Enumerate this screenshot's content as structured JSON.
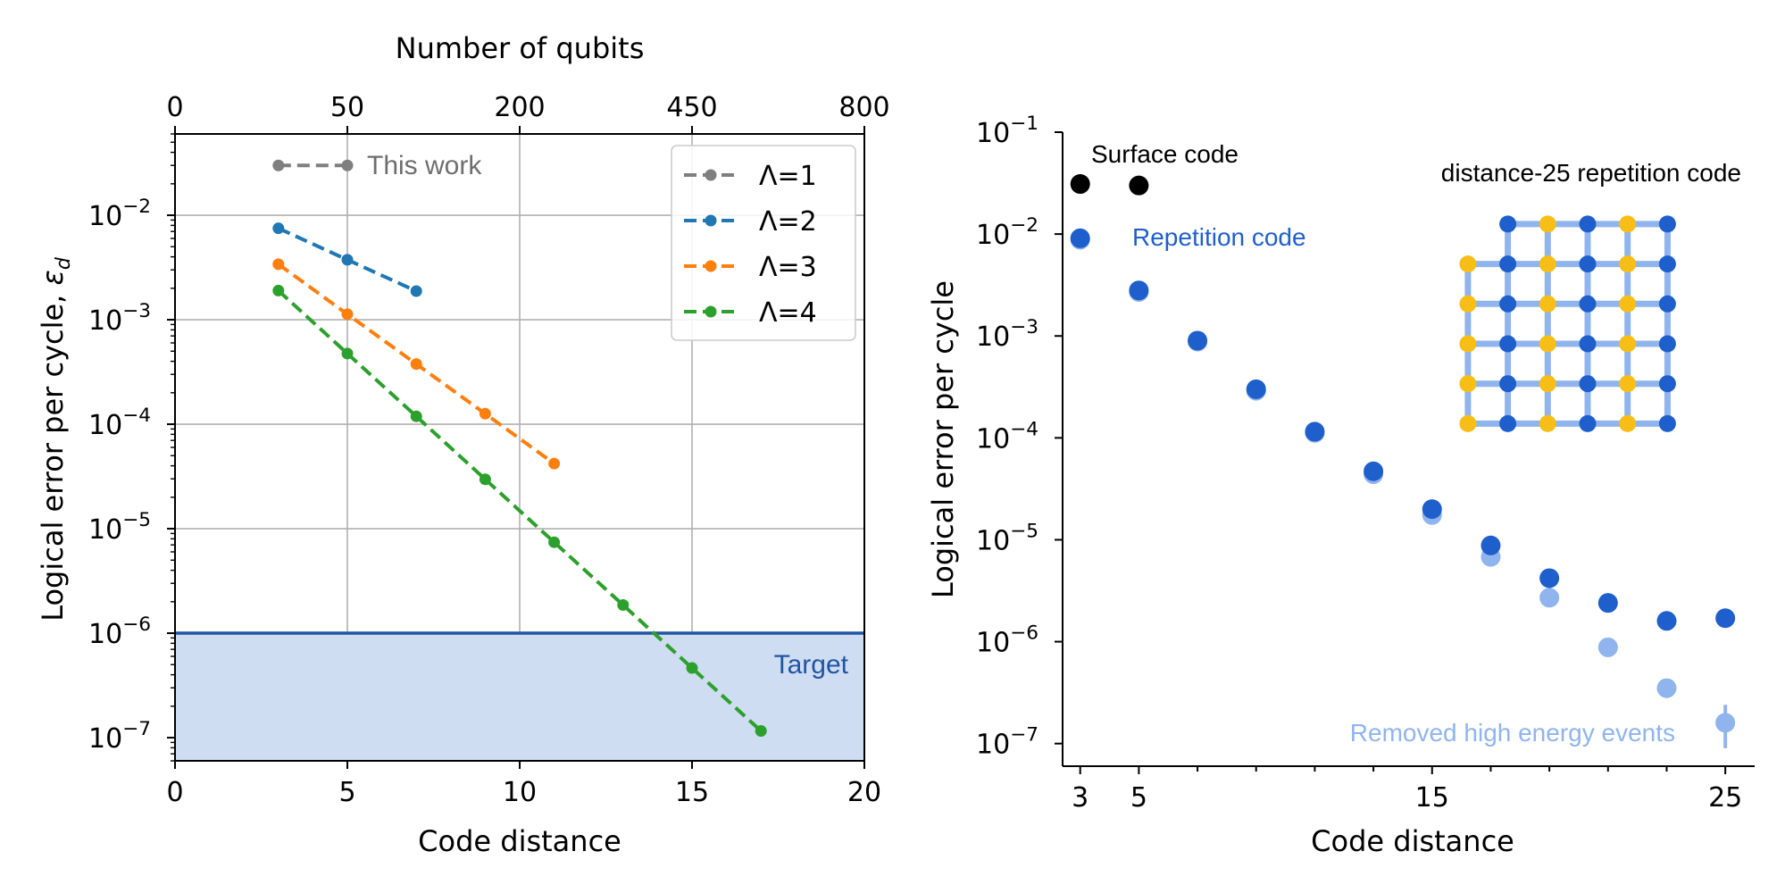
{
  "chart_data": [
    {
      "type": "line",
      "xlabel": "Code distance",
      "ylabel": "Logical error per cycle, ε_d",
      "secondary_xlabel": "Number of qubits",
      "xlim": [
        0,
        20
      ],
      "ylim": [
        6e-08,
        0.06
      ],
      "yscale": "log",
      "grid": true,
      "legend_position": "top-right",
      "x_ticks": [
        "0",
        "5",
        "10",
        "15",
        "20"
      ],
      "y_ticks": [
        {
          "value": 0.01,
          "base": "10",
          "exp": "−2"
        },
        {
          "value": 0.001,
          "base": "10",
          "exp": "−3"
        },
        {
          "value": 0.0001,
          "base": "10",
          "exp": "−4"
        },
        {
          "value": 1e-05,
          "base": "10",
          "exp": "−5"
        },
        {
          "value": 1e-06,
          "base": "10",
          "exp": "−6"
        },
        {
          "value": 1e-07,
          "base": "10",
          "exp": "−7"
        }
      ],
      "secondary_x_ticks": [
        {
          "x": 0,
          "label": "0"
        },
        {
          "x": 5,
          "label": "50"
        },
        {
          "x": 10,
          "label": "200"
        },
        {
          "x": 15,
          "label": "450"
        },
        {
          "x": 20,
          "label": "800"
        }
      ],
      "series": [
        {
          "name": "Λ=1",
          "color": "#7f7f7f",
          "x": [
            3,
            5
          ],
          "y": [
            0.03,
            0.03
          ]
        },
        {
          "name": "Λ=2",
          "color": "#1f77b4",
          "x": [
            3,
            5,
            7
          ],
          "y": [
            0.0075,
            0.00375,
            0.00188
          ]
        },
        {
          "name": "Λ=3",
          "color": "#ff7f0e",
          "x": [
            3,
            5,
            7,
            9,
            11
          ],
          "y": [
            0.0034,
            0.00113,
            0.000377,
            0.000126,
            4.2e-05
          ]
        },
        {
          "name": "Λ=4",
          "color": "#2ca02c",
          "x": [
            3,
            5,
            7,
            9,
            11,
            13,
            15,
            17
          ],
          "y": [
            0.0019,
            0.000475,
            0.000119,
            2.97e-05,
            7.42e-06,
            1.86e-06,
            4.64e-07,
            1.16e-07
          ]
        }
      ],
      "annotations": {
        "this_work": "This work",
        "target": "Target",
        "target_level": 1e-06
      }
    },
    {
      "type": "scatter",
      "xlabel": "Code distance",
      "ylabel": "Logical error per cycle",
      "xlim": [
        2.4,
        26
      ],
      "ylim": [
        6e-08,
        0.1
      ],
      "yscale": "log",
      "grid": false,
      "x_ticks": [
        "3",
        "5",
        "15",
        "25"
      ],
      "y_ticks": [
        {
          "value": 0.1,
          "base": "10",
          "exp": "−1"
        },
        {
          "value": 0.01,
          "base": "10",
          "exp": "−2"
        },
        {
          "value": 0.001,
          "base": "10",
          "exp": "−3"
        },
        {
          "value": 0.0001,
          "base": "10",
          "exp": "−4"
        },
        {
          "value": 1e-05,
          "base": "10",
          "exp": "−5"
        },
        {
          "value": 1e-06,
          "base": "10",
          "exp": "−6"
        },
        {
          "value": 1e-07,
          "base": "10",
          "exp": "−7"
        }
      ],
      "series": [
        {
          "name": "Surface code",
          "color": "#000000",
          "x": [
            3,
            5
          ],
          "y": [
            0.031,
            0.03
          ]
        },
        {
          "name": "Removed high energy events",
          "color": "#8fb4ee",
          "x": [
            3,
            5,
            7,
            9,
            11,
            13,
            15,
            17,
            19,
            21,
            23,
            25
          ],
          "y": [
            0.0088,
            0.0027,
            0.00088,
            0.00029,
            0.000112,
            4.4e-05,
            1.75e-05,
            6.8e-06,
            2.7e-06,
            8.8e-07,
            3.5e-07,
            1.6e-07
          ]
        },
        {
          "name": "Repetition code",
          "color": "#1f5fcc",
          "x": [
            3,
            5,
            7,
            9,
            11,
            13,
            15,
            17,
            19,
            21,
            23,
            25
          ],
          "y": [
            0.0091,
            0.0028,
            0.0009,
            0.0003,
            0.000115,
            4.7e-05,
            2e-05,
            8.8e-06,
            4.2e-06,
            2.4e-06,
            1.6e-06,
            1.7e-06
          ]
        }
      ],
      "annotations": {
        "surface_code": "Surface code",
        "repetition_code": "Repetition code",
        "removed_events": "Removed high energy events",
        "inset_title": "distance-25 repetition code"
      }
    }
  ]
}
